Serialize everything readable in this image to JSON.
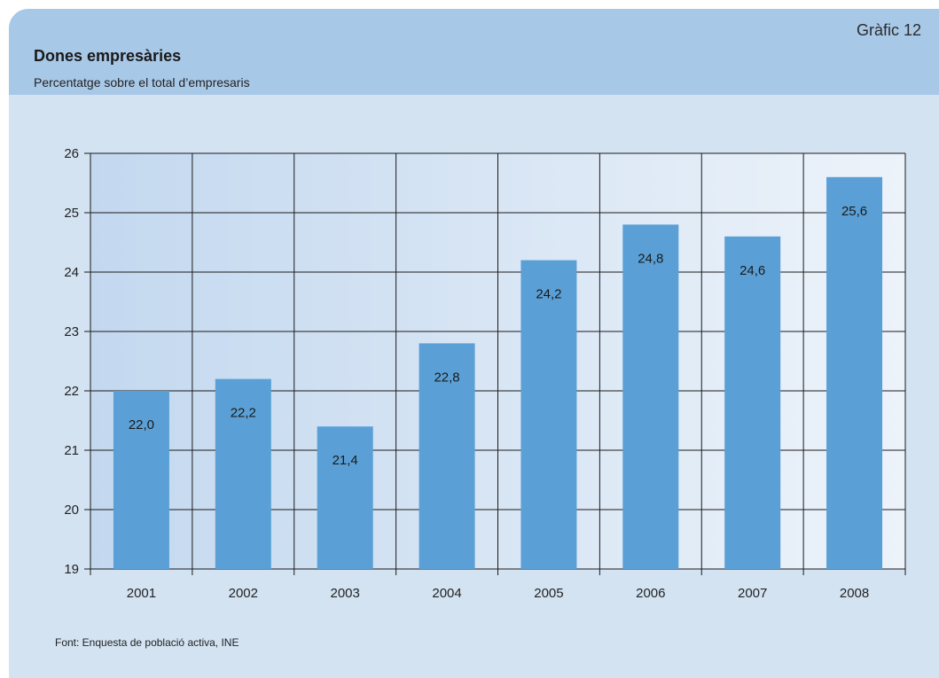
{
  "header": {
    "graphic_number": "Gràfic 12",
    "title": "Dones empresàries",
    "subtitle": "Percentatge sobre el total d’empresaris"
  },
  "source": "Font: Enquesta de població activa, INE",
  "colors": {
    "bar": "#5aa0d6",
    "header_band": "#a8c8e7",
    "card_background": "#d3e3f2",
    "grid": "#1a1a1a"
  },
  "chart_data": {
    "type": "bar",
    "title": "Dones empresàries",
    "subtitle": "Percentatge sobre el total d’empresaris",
    "categories": [
      "2001",
      "2002",
      "2003",
      "2004",
      "2005",
      "2006",
      "2007",
      "2008"
    ],
    "values": [
      22.0,
      22.2,
      21.4,
      22.8,
      24.2,
      24.8,
      24.6,
      25.6
    ],
    "value_labels": [
      "22,0",
      "22,2",
      "21,4",
      "22,8",
      "24,2",
      "24,8",
      "24,6",
      "25,6"
    ],
    "xlabel": "",
    "ylabel": "",
    "ylim": [
      19,
      26
    ],
    "yticks": [
      19,
      20,
      21,
      22,
      23,
      24,
      25,
      26
    ],
    "grid": true,
    "legend": "none"
  }
}
